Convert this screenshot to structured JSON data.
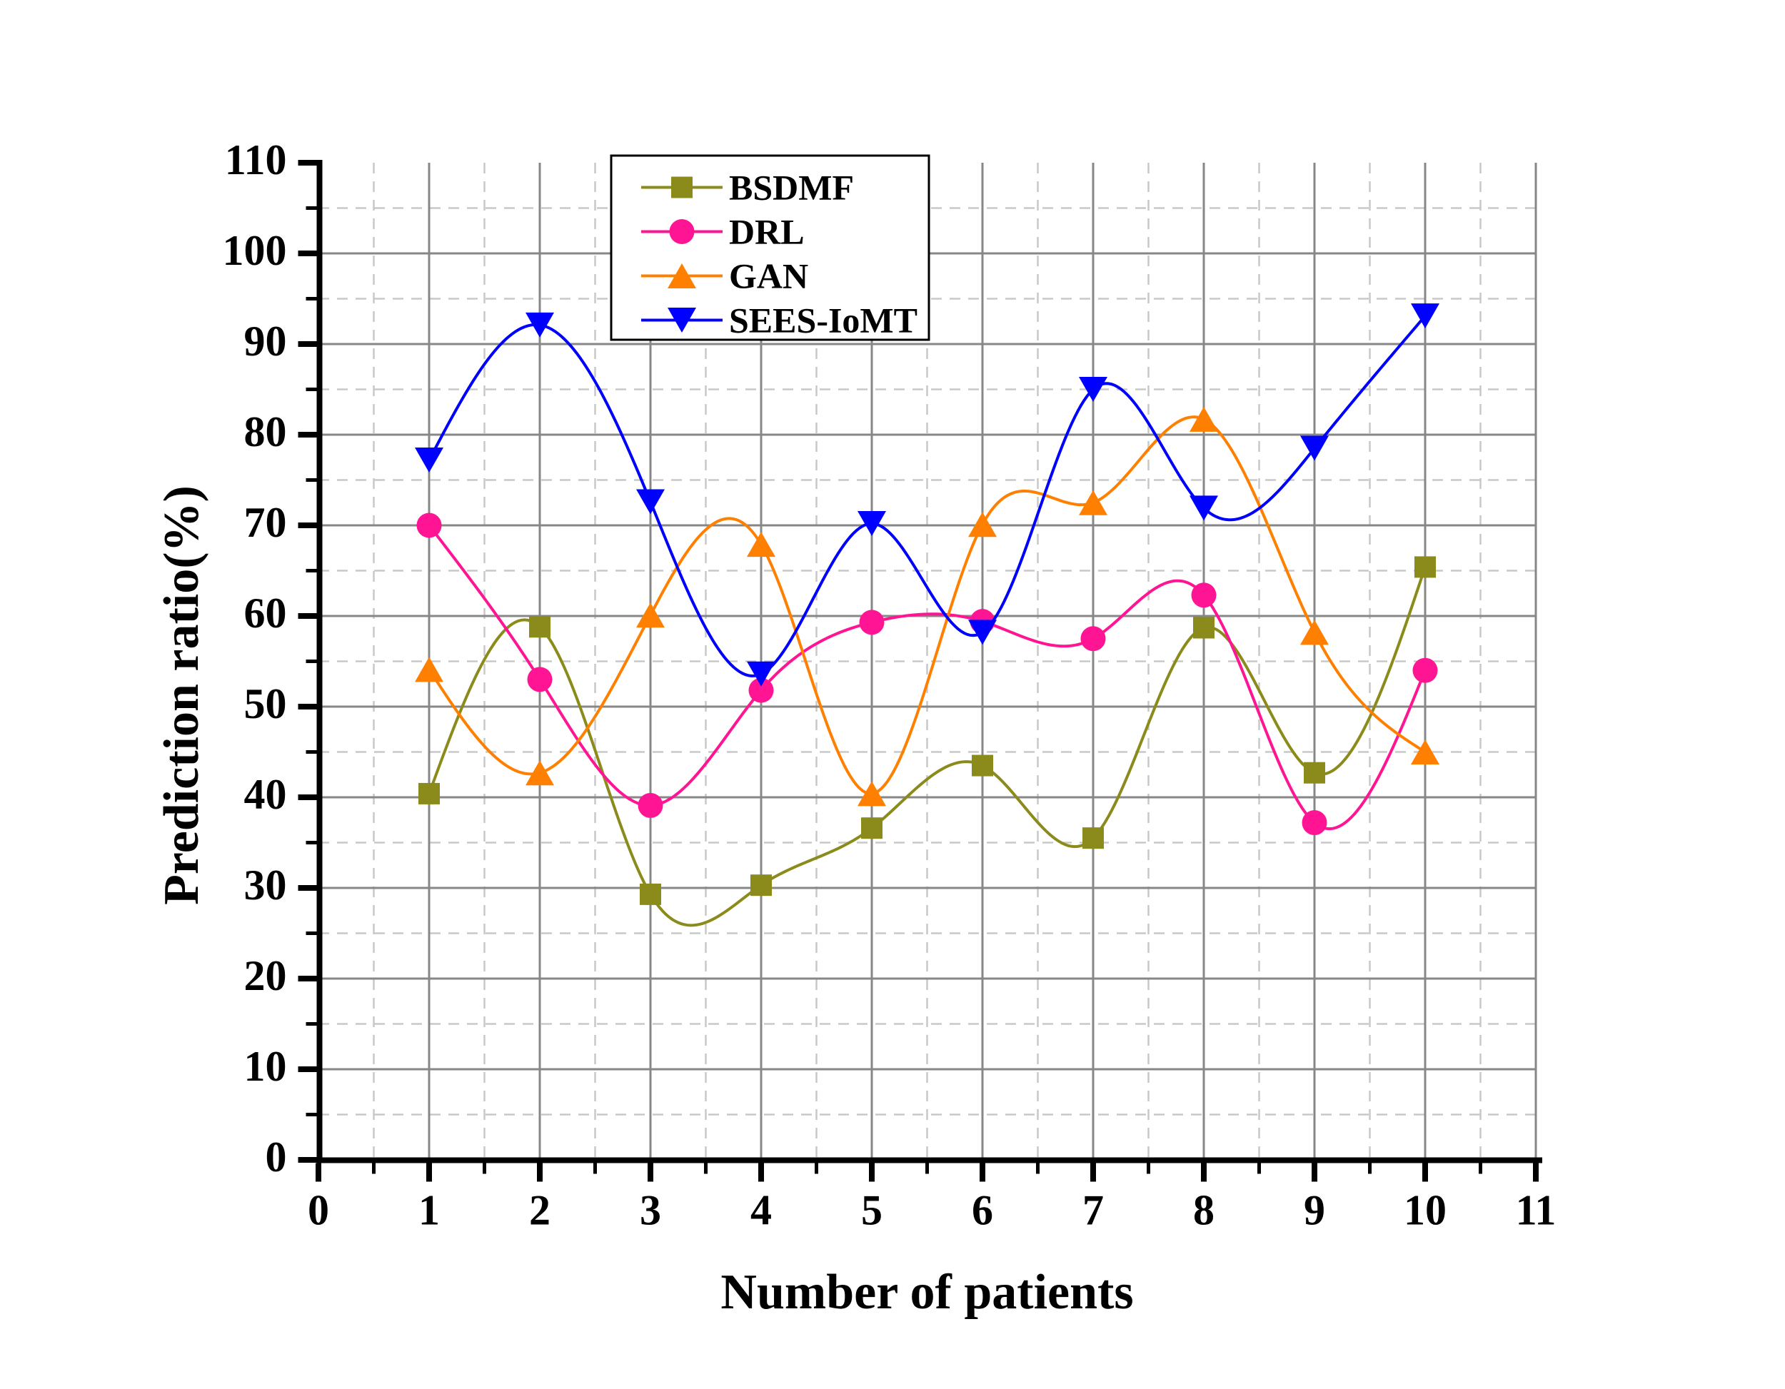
{
  "chart_data": {
    "type": "line",
    "title": "",
    "xlabel": "Number of patients",
    "ylabel": "Prediction ratio(%)",
    "x": [
      1,
      2,
      3,
      4,
      5,
      6,
      7,
      8,
      9,
      10
    ],
    "series": [
      {
        "name": "BSDMF",
        "color": "#8B8B1B",
        "marker": "square",
        "values": [
          40.4,
          58.8,
          29.3,
          30.3,
          36.6,
          43.5,
          35.5,
          58.7,
          42.7,
          65.4
        ]
      },
      {
        "name": "DRL",
        "color": "#FF1493",
        "marker": "circle",
        "values": [
          70.0,
          53.0,
          39.1,
          51.8,
          59.3,
          59.4,
          57.5,
          62.3,
          37.2,
          54.0
        ]
      },
      {
        "name": "GAN",
        "color": "#FF8000",
        "marker": "triangle-up",
        "values": [
          54.1,
          42.7,
          60.1,
          67.9,
          40.4,
          70.1,
          72.5,
          81.7,
          58.2,
          45.0
        ]
      },
      {
        "name": "SEES-IoMT",
        "color": "#0000FF",
        "marker": "triangle-down",
        "values": [
          77.2,
          92.1,
          72.6,
          53.6,
          70.2,
          58.2,
          85.0,
          71.9,
          78.5,
          93.1
        ]
      }
    ],
    "xlim": [
      0,
      11
    ],
    "ylim": [
      0,
      110
    ],
    "x_major_ticks": [
      "0",
      "1",
      "2",
      "3",
      "4",
      "5",
      "6",
      "7",
      "8",
      "9",
      "10",
      "11"
    ],
    "y_major_ticks": [
      "0",
      "10",
      "20",
      "30",
      "40",
      "50",
      "60",
      "70",
      "80",
      "90",
      "100",
      "110"
    ],
    "x_major_step": 1,
    "x_minor_step": 0.5,
    "y_major_step": 10,
    "y_minor_step": 5,
    "interpolation": "cubic-spline",
    "grid": {
      "major_on": true,
      "minor_on": true,
      "major_color": "#878787",
      "minor_color": "#C8C8C8"
    },
    "axis_color": "#000000",
    "background_color": "#FFFFFF",
    "legend": {
      "position": "top-center-left",
      "entries": [
        "BSDMF",
        "DRL",
        "GAN",
        "SEES-IoMT"
      ]
    }
  }
}
